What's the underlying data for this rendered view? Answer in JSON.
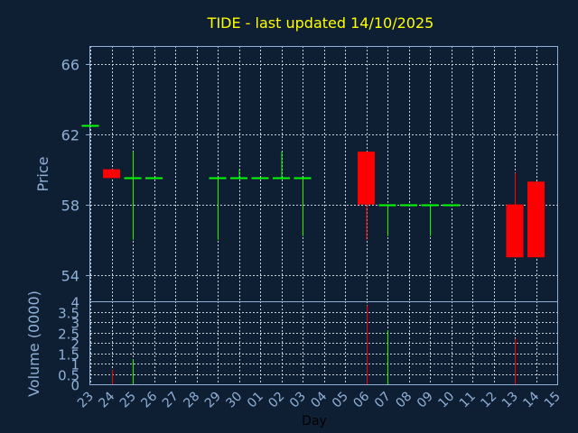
{
  "chart_data": [
    {
      "type": "candlestick",
      "title": "TIDE - last updated 14/10/2025",
      "ylabel": "Price",
      "ylim": [
        52.5,
        67
      ],
      "yticks": [
        54,
        58,
        62,
        66
      ],
      "grid": true,
      "categories": [
        "23",
        "24",
        "25",
        "26",
        "27",
        "28",
        "29",
        "30",
        "01",
        "02",
        "03",
        "04",
        "05",
        "06",
        "07",
        "08",
        "09",
        "10",
        "11",
        "12",
        "13",
        "14",
        "15"
      ],
      "candles": [
        {
          "x": "23",
          "open": 62.5,
          "close": 62.5,
          "high": 62.5,
          "low": 62.5
        },
        {
          "x": "24",
          "open": 60.0,
          "close": 59.5,
          "high": 60.0,
          "low": 59.5
        },
        {
          "x": "25",
          "open": 59.5,
          "close": 59.5,
          "high": 61.0,
          "low": 56.0
        },
        {
          "x": "26",
          "open": 59.5,
          "close": 59.5,
          "high": 59.5,
          "low": 59.5
        },
        {
          "x": "29",
          "open": 59.5,
          "close": 59.5,
          "high": 59.5,
          "low": 56.0
        },
        {
          "x": "30",
          "open": 59.5,
          "close": 59.5,
          "high": 60.0,
          "low": 59.5
        },
        {
          "x": "01",
          "open": 59.5,
          "close": 59.5,
          "high": 59.5,
          "low": 59.5
        },
        {
          "x": "02",
          "open": 59.5,
          "close": 59.5,
          "high": 61.0,
          "low": 59.5
        },
        {
          "x": "03",
          "open": 59.5,
          "close": 59.5,
          "high": 59.5,
          "low": 56.2
        },
        {
          "x": "06",
          "open": 61.0,
          "close": 58.0,
          "high": 61.0,
          "low": 56.0
        },
        {
          "x": "07",
          "open": 58.0,
          "close": 58.0,
          "high": 58.0,
          "low": 56.2
        },
        {
          "x": "08",
          "open": 58.0,
          "close": 58.0,
          "high": 58.0,
          "low": 58.0
        },
        {
          "x": "09",
          "open": 58.0,
          "close": 58.0,
          "high": 58.0,
          "low": 56.2
        },
        {
          "x": "10",
          "open": 58.0,
          "close": 58.0,
          "high": 58.0,
          "low": 58.0
        },
        {
          "x": "13",
          "open": 58.0,
          "close": 55.0,
          "high": 59.8,
          "low": 55.0
        },
        {
          "x": "14",
          "open": 59.3,
          "close": 55.0,
          "high": 59.3,
          "low": 55.0
        }
      ]
    },
    {
      "type": "bar",
      "ylabel": "Volume (0000)",
      "xlabel": "Day",
      "ylim": [
        0,
        4
      ],
      "yticks": [
        0,
        0.5,
        1,
        1.5,
        2,
        2.5,
        3,
        3.5,
        4
      ],
      "ytick_labels": [
        "0",
        "0.5",
        "1",
        "1.5",
        "2",
        "2.5",
        "3",
        "3.5",
        "4"
      ],
      "grid": true,
      "bars": [
        {
          "x": "24",
          "value": 0.7,
          "color": "red"
        },
        {
          "x": "25",
          "value": 1.2,
          "color": "green"
        },
        {
          "x": "06",
          "value": 3.8,
          "color": "red"
        },
        {
          "x": "07",
          "value": 2.6,
          "color": "green"
        },
        {
          "x": "13",
          "value": 2.2,
          "color": "red"
        }
      ]
    }
  ],
  "colors": {
    "background": "#0f1f33",
    "axis": "#8fb0d8",
    "title": "#ffff00",
    "up": "#00ff00",
    "down": "#ff0000",
    "grid": "#c8d0d8"
  }
}
